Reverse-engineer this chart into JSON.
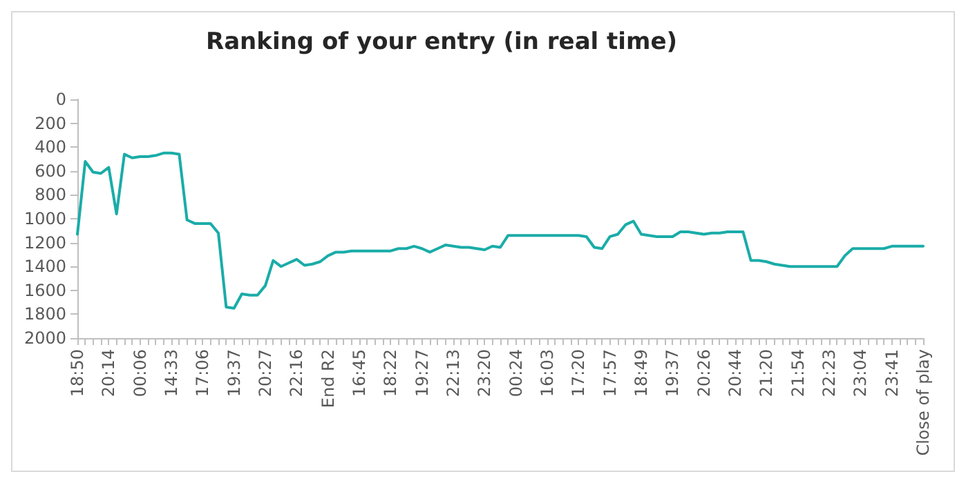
{
  "chart_data": {
    "type": "line",
    "title": "Ranking of your entry (in real time)",
    "categories": [
      "18:50",
      null,
      null,
      null,
      "20:14",
      null,
      null,
      null,
      "00:06",
      null,
      null,
      null,
      "14:33",
      null,
      null,
      null,
      "17:06",
      null,
      null,
      null,
      "19:37",
      null,
      null,
      null,
      "20:27",
      null,
      null,
      null,
      "22:16",
      null,
      null,
      null,
      "End R2",
      null,
      null,
      null,
      "16:45",
      null,
      null,
      null,
      "18:22",
      null,
      null,
      null,
      "19:27",
      null,
      null,
      null,
      "22:13",
      null,
      null,
      null,
      "23:20",
      null,
      null,
      null,
      "00:24",
      null,
      null,
      null,
      "16:03",
      null,
      null,
      null,
      "17:20",
      null,
      null,
      null,
      "17:57",
      null,
      null,
      null,
      "18:49",
      null,
      null,
      null,
      "19:37",
      null,
      null,
      null,
      "20:26",
      null,
      null,
      null,
      "20:44",
      null,
      null,
      null,
      "21:20",
      null,
      null,
      null,
      "21:54",
      null,
      null,
      null,
      "22:23",
      null,
      null,
      null,
      "23:04",
      null,
      null,
      null,
      "23:41",
      null,
      null,
      null,
      "Close of play"
    ],
    "series": [
      {
        "color": "#1aaca8",
        "values": [
          1130,
          520,
          610,
          620,
          570,
          960,
          460,
          490,
          480,
          480,
          470,
          450,
          450,
          460,
          1010,
          1040,
          1040,
          1040,
          1120,
          1740,
          1750,
          1630,
          1640,
          1640,
          1560,
          1350,
          1400,
          1370,
          1340,
          1390,
          1380,
          1360,
          1310,
          1280,
          1280,
          1270,
          1270,
          1270,
          1270,
          1270,
          1270,
          1250,
          1250,
          1230,
          1250,
          1280,
          1250,
          1220,
          1230,
          1240,
          1240,
          1250,
          1260,
          1230,
          1240,
          1140,
          1140,
          1140,
          1140,
          1140,
          1140,
          1140,
          1140,
          1140,
          1140,
          1150,
          1240,
          1250,
          1150,
          1130,
          1050,
          1020,
          1130,
          1140,
          1150,
          1150,
          1150,
          1110,
          1110,
          1120,
          1130,
          1120,
          1120,
          1110,
          1110,
          1110,
          1350,
          1350,
          1360,
          1380,
          1390,
          1400,
          1400,
          1400,
          1400,
          1400,
          1400,
          1400,
          1310,
          1250,
          1250,
          1250,
          1250,
          1250,
          1230,
          1230,
          1230,
          1230,
          1230
        ]
      }
    ],
    "ylim": [
      2000,
      0
    ],
    "yticks": [
      0,
      200,
      400,
      600,
      800,
      1000,
      1200,
      1400,
      1600,
      1800,
      2000
    ],
    "grid": false,
    "marker": "none",
    "line_style": "solid"
  }
}
